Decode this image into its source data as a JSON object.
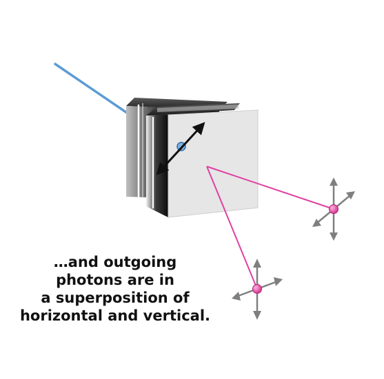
{
  "caption": {
    "lines": [
      "…and outgoing",
      "photons are in",
      "a superposition of",
      "horizontal and vertical."
    ]
  },
  "colors": {
    "incoming_beam": "#5b9bd5",
    "outgoing_beams": "#e040a0",
    "photon_marker": "#e0409a",
    "polarization_arrows": "#7f7f7f",
    "crystal_dark": "#1a1a1a",
    "crystal_face": "#e6e6e6",
    "crystal_polarization_arrow": "#111111",
    "entry_point": "#5b9bd5"
  },
  "icons": {
    "incoming_photon": "incoming-beam",
    "crystal": "double-slab-crystal",
    "outgoing_photon_right": "crosshair-polarization-arrows",
    "outgoing_photon_bottom": "crosshair-polarization-arrows"
  }
}
